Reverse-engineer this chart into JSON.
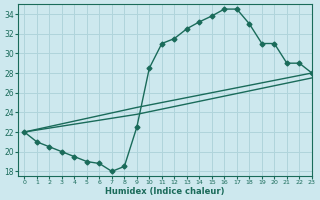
{
  "line1_x": [
    0,
    1,
    2,
    3,
    4,
    5,
    6,
    7,
    8,
    9,
    10,
    11,
    12,
    13,
    14,
    15,
    16,
    17,
    18,
    19,
    20,
    21,
    22,
    23
  ],
  "line1_y": [
    22.0,
    21.0,
    20.5,
    20.0,
    19.5,
    19.0,
    18.8,
    18.0,
    18.5,
    22.5,
    28.5,
    31.0,
    31.5,
    32.5,
    33.2,
    33.8,
    34.5,
    34.5,
    33.0,
    31.0,
    31.0,
    29.0,
    29.0,
    28.0
  ],
  "line2_x": [
    0,
    9,
    23
  ],
  "line2_y": [
    22.0,
    23.8,
    27.5
  ],
  "line3_x": [
    0,
    9,
    23
  ],
  "line3_y": [
    22.0,
    24.5,
    28.0
  ],
  "color": "#1a6b5a",
  "bg_color": "#cde8ee",
  "grid_color": "#b0d4db",
  "xlabel": "Humidex (Indice chaleur)",
  "xlim": [
    -0.5,
    23
  ],
  "ylim": [
    17.5,
    35
  ],
  "yticks": [
    18,
    20,
    22,
    24,
    26,
    28,
    30,
    32,
    34
  ],
  "xticks": [
    0,
    1,
    2,
    3,
    4,
    5,
    6,
    7,
    8,
    9,
    10,
    11,
    12,
    13,
    14,
    15,
    16,
    17,
    18,
    19,
    20,
    21,
    22,
    23
  ],
  "marker": "D",
  "markersize": 2.5,
  "linewidth": 1.0
}
